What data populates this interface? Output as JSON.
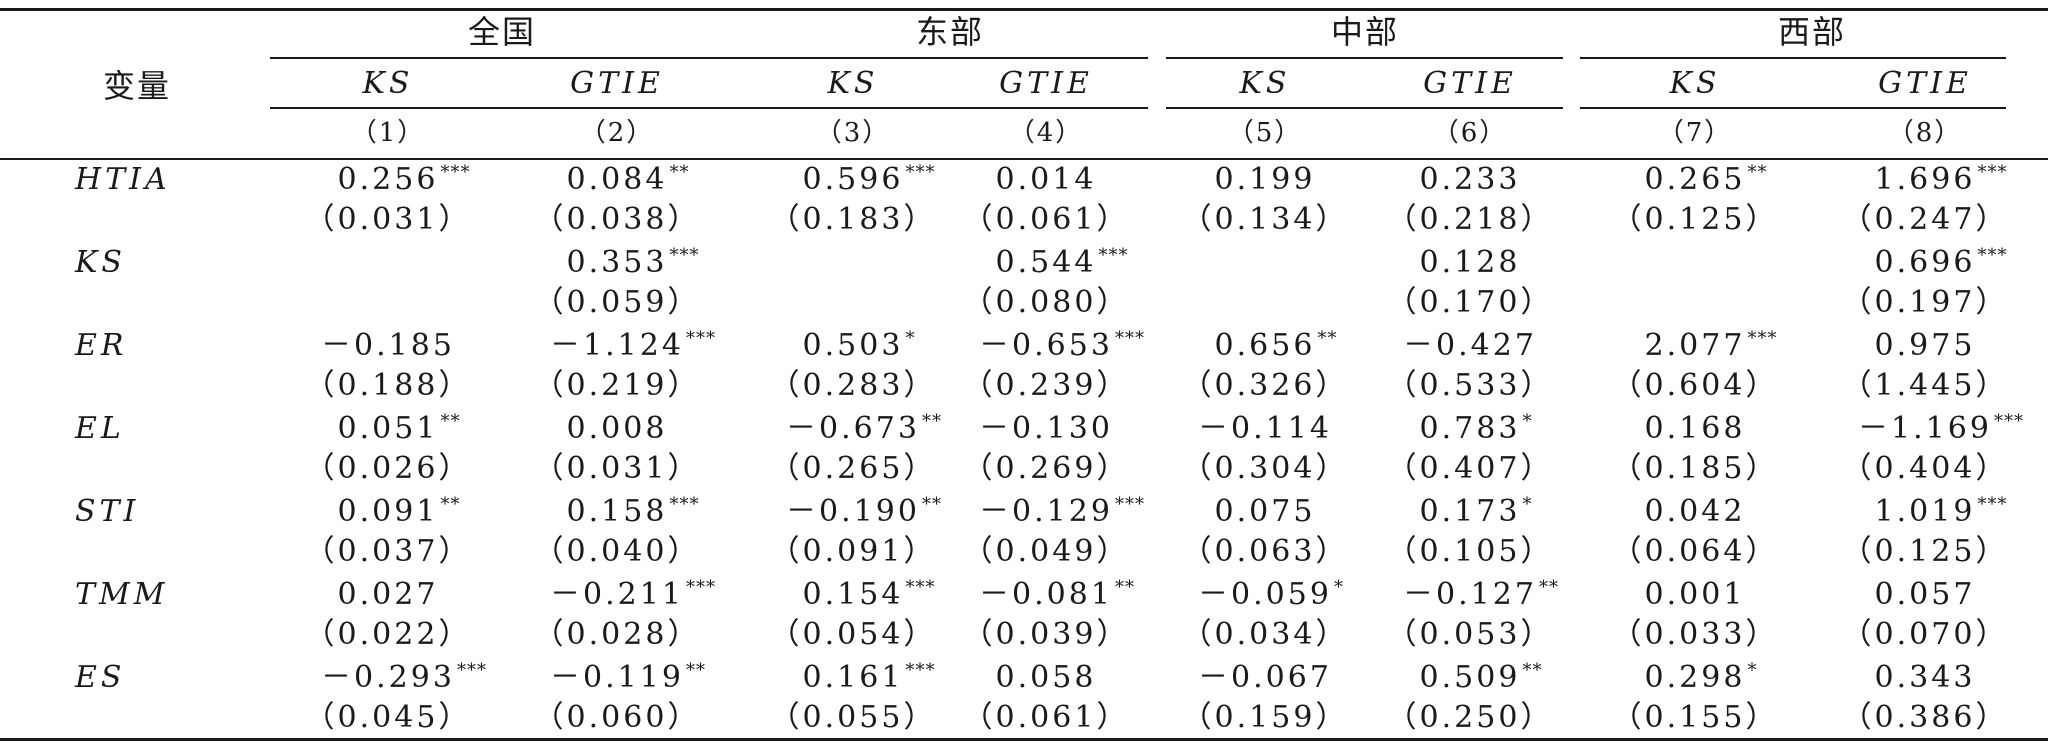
{
  "header": {
    "variable_label": "变量",
    "groups": [
      "全国",
      "东部",
      "中部",
      "西部"
    ],
    "models": [
      "KS",
      "GTIE",
      "KS",
      "GTIE",
      "KS",
      "GTIE",
      "KS",
      "GTIE"
    ],
    "col_numbers": [
      "（1）",
      "（2）",
      "（3）",
      "（4）",
      "（5）",
      "（6）",
      "（7）",
      "（8）"
    ]
  },
  "rows": [
    {
      "name": "HTIA",
      "coef": [
        [
          "0.256",
          "***"
        ],
        [
          "0.084",
          "**"
        ],
        [
          "0.596",
          "***"
        ],
        [
          "0.014",
          ""
        ],
        [
          "0.199",
          ""
        ],
        [
          "0.233",
          ""
        ],
        [
          "0.265",
          "**"
        ],
        [
          "1.696",
          "***"
        ]
      ],
      "se": [
        "（0.031）",
        "（0.038）",
        "（0.183）",
        "（0.061）",
        "（0.134）",
        "（0.218）",
        "（0.125）",
        "（0.247）"
      ]
    },
    {
      "name": "KS",
      "coef": [
        [
          "",
          ""
        ],
        [
          "0.353",
          "***"
        ],
        [
          "",
          ""
        ],
        [
          "0.544",
          "***"
        ],
        [
          "",
          ""
        ],
        [
          "0.128",
          ""
        ],
        [
          "",
          ""
        ],
        [
          "0.696",
          "***"
        ]
      ],
      "se": [
        "",
        "（0.059）",
        "",
        "（0.080）",
        "",
        "（0.170）",
        "",
        "（0.197）"
      ]
    },
    {
      "name": "ER",
      "coef": [
        [
          "－0.185",
          ""
        ],
        [
          "－1.124",
          "***"
        ],
        [
          "0.503",
          "*"
        ],
        [
          "－0.653",
          "***"
        ],
        [
          "0.656",
          "**"
        ],
        [
          "－0.427",
          ""
        ],
        [
          "2.077",
          "***"
        ],
        [
          "0.975",
          ""
        ]
      ],
      "se": [
        "（0.188）",
        "（0.219）",
        "（0.283）",
        "（0.239）",
        "（0.326）",
        "（0.533）",
        "（0.604）",
        "（1.445）"
      ]
    },
    {
      "name": "EL",
      "coef": [
        [
          "0.051",
          "**"
        ],
        [
          "0.008",
          ""
        ],
        [
          "－0.673",
          "**"
        ],
        [
          "－0.130",
          ""
        ],
        [
          "－0.114",
          ""
        ],
        [
          "0.783",
          "*"
        ],
        [
          "0.168",
          ""
        ],
        [
          "－1.169",
          "***"
        ]
      ],
      "se": [
        "（0.026）",
        "（0.031）",
        "（0.265）",
        "（0.269）",
        "（0.304）",
        "（0.407）",
        "（0.185）",
        "（0.404）"
      ]
    },
    {
      "name": "STI",
      "coef": [
        [
          "0.091",
          "**"
        ],
        [
          "0.158",
          "***"
        ],
        [
          "－0.190",
          "**"
        ],
        [
          "－0.129",
          "***"
        ],
        [
          "0.075",
          ""
        ],
        [
          "0.173",
          "*"
        ],
        [
          "0.042",
          ""
        ],
        [
          "1.019",
          "***"
        ]
      ],
      "se": [
        "（0.037）",
        "（0.040）",
        "（0.091）",
        "（0.049）",
        "（0.063）",
        "（0.105）",
        "（0.064）",
        "（0.125）"
      ]
    },
    {
      "name": "TMM",
      "coef": [
        [
          "0.027",
          ""
        ],
        [
          "－0.211",
          "***"
        ],
        [
          "0.154",
          "***"
        ],
        [
          "－0.081",
          "**"
        ],
        [
          "－0.059",
          "*"
        ],
        [
          "－0.127",
          "**"
        ],
        [
          "0.001",
          ""
        ],
        [
          "0.057",
          ""
        ]
      ],
      "se": [
        "（0.022）",
        "（0.028）",
        "（0.054）",
        "（0.039）",
        "（0.034）",
        "（0.053）",
        "（0.033）",
        "（0.070）"
      ]
    },
    {
      "name": "ES",
      "coef": [
        [
          "－0.293",
          "***"
        ],
        [
          "－0.119",
          "**"
        ],
        [
          "0.161",
          "***"
        ],
        [
          "0.058",
          ""
        ],
        [
          "－0.067",
          ""
        ],
        [
          "0.509",
          "**"
        ],
        [
          "0.298",
          "*"
        ],
        [
          "0.343",
          ""
        ]
      ],
      "se": [
        "（0.045）",
        "（0.060）",
        "（0.055）",
        "（0.061）",
        "（0.159）",
        "（0.250）",
        "（0.155）",
        "（0.386）"
      ]
    }
  ]
}
